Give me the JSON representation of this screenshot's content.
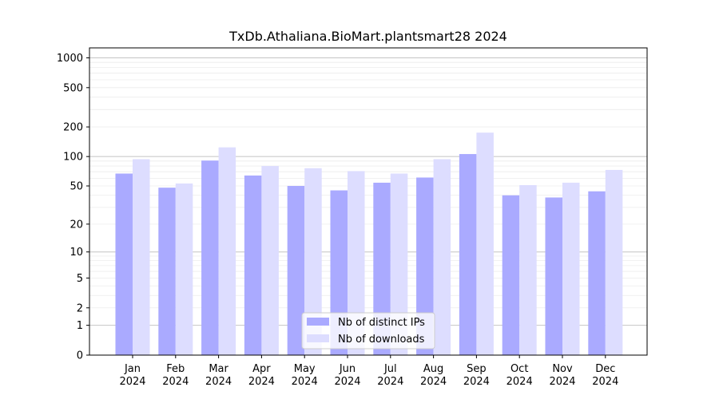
{
  "chart_data": {
    "type": "bar",
    "title": "TxDb.Athaliana.BioMart.plantsmart28 2024",
    "xlabel": "",
    "ylabel": "",
    "y_scale": "log(1+y)",
    "ylim": [
      0,
      1200
    ],
    "y_ticks": [
      0,
      1,
      2,
      5,
      10,
      20,
      50,
      100,
      200,
      500,
      1000
    ],
    "y_tick_labels": [
      "0",
      "1",
      "2",
      "5",
      "10",
      "20",
      "50",
      "100",
      "200",
      "500",
      "1000"
    ],
    "grid": true,
    "legend_position": "lower-center",
    "categories": [
      "Jan\n2024",
      "Feb\n2024",
      "Mar\n2024",
      "Apr\n2024",
      "May\n2024",
      "Jun\n2024",
      "Jul\n2024",
      "Aug\n2024",
      "Sep\n2024",
      "Oct\n2024",
      "Nov\n2024",
      "Dec\n2024"
    ],
    "series": [
      {
        "name": "Nb of distinct IPs",
        "color": "#aaaaff",
        "values": [
          67,
          48,
          91,
          64,
          50,
          45,
          54,
          61,
          106,
          40,
          38,
          44
        ]
      },
      {
        "name": "Nb of downloads",
        "color": "#ddddff",
        "values": [
          94,
          53,
          124,
          80,
          76,
          71,
          67,
          94,
          175,
          51,
          54,
          73
        ]
      }
    ]
  }
}
